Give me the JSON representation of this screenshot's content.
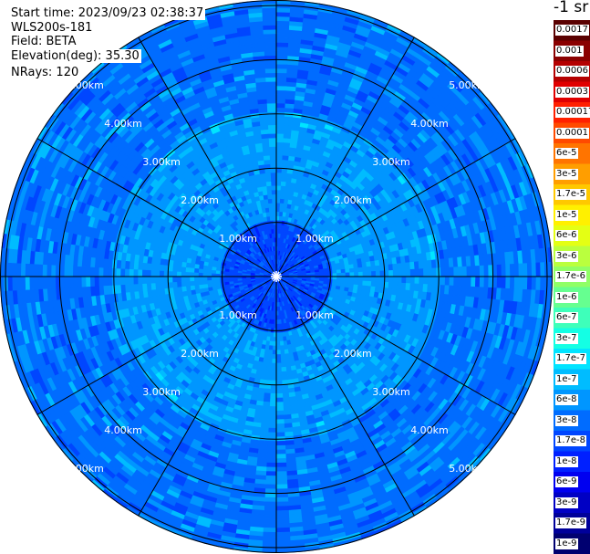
{
  "header": {
    "start_time": "Start time: 2023/09/23 02:38:37",
    "instrument": "WLS200s-181",
    "field": "Field: BETA",
    "elevation": "Elevation(deg): 35.30",
    "nrays": "NRays: 120"
  },
  "colorbar": {
    "title": "-1 sr",
    "ticks": [
      "0.0017",
      "0.001",
      "0.0006",
      "0.0003",
      "0.00017",
      "0.0001",
      "6e-5",
      "3e-5",
      "1.7e-5",
      "1e-5",
      "6e-6",
      "3e-6",
      "1.7e-6",
      "1e-6",
      "6e-7",
      "3e-7",
      "1.7e-7",
      "1e-7",
      "6e-8",
      "3e-8",
      "1.7e-8",
      "1e-8",
      "6e-9",
      "3e-9",
      "1.7e-9",
      "1e-9"
    ],
    "colors": [
      "#5a0000",
      "#8a0000",
      "#b40000",
      "#e00000",
      "#ff2000",
      "#ff4a00",
      "#ff7400",
      "#ff9e00",
      "#ffc800",
      "#fff000",
      "#e4ff14",
      "#baff3e",
      "#90ff66",
      "#66ff90",
      "#3effba",
      "#14ffe4",
      "#00e4ff",
      "#00bcff",
      "#0096ff",
      "#006cff",
      "#0046ff",
      "#0020ff",
      "#0000f0",
      "#0000c4",
      "#00009a",
      "#000070"
    ]
  },
  "chart_data": {
    "type": "heatmap",
    "projection": "polar (PPI)",
    "nrays": 120,
    "range_ring_labels_km": [
      "1.00km",
      "2.00km",
      "3.00km",
      "4.00km",
      "5.00km"
    ],
    "range_rings_km": [
      1,
      2,
      3,
      4,
      5
    ],
    "max_range_km": 5.0,
    "spokes_deg": [
      0,
      30,
      60,
      90,
      120,
      150,
      180,
      210,
      240,
      270,
      300,
      330
    ],
    "range_profile": [
      {
        "range_km": 0.5,
        "value": "1.7e-8"
      },
      {
        "range_km": 1.5,
        "value": "6e-8"
      },
      {
        "range_km": 2.5,
        "value": "6e-8"
      },
      {
        "range_km": 3.5,
        "value": "3e-8"
      },
      {
        "range_km": 4.5,
        "value": "3e-8"
      }
    ],
    "colorbar_range": [
      "1e-9",
      "0.0017"
    ],
    "grid": true
  }
}
